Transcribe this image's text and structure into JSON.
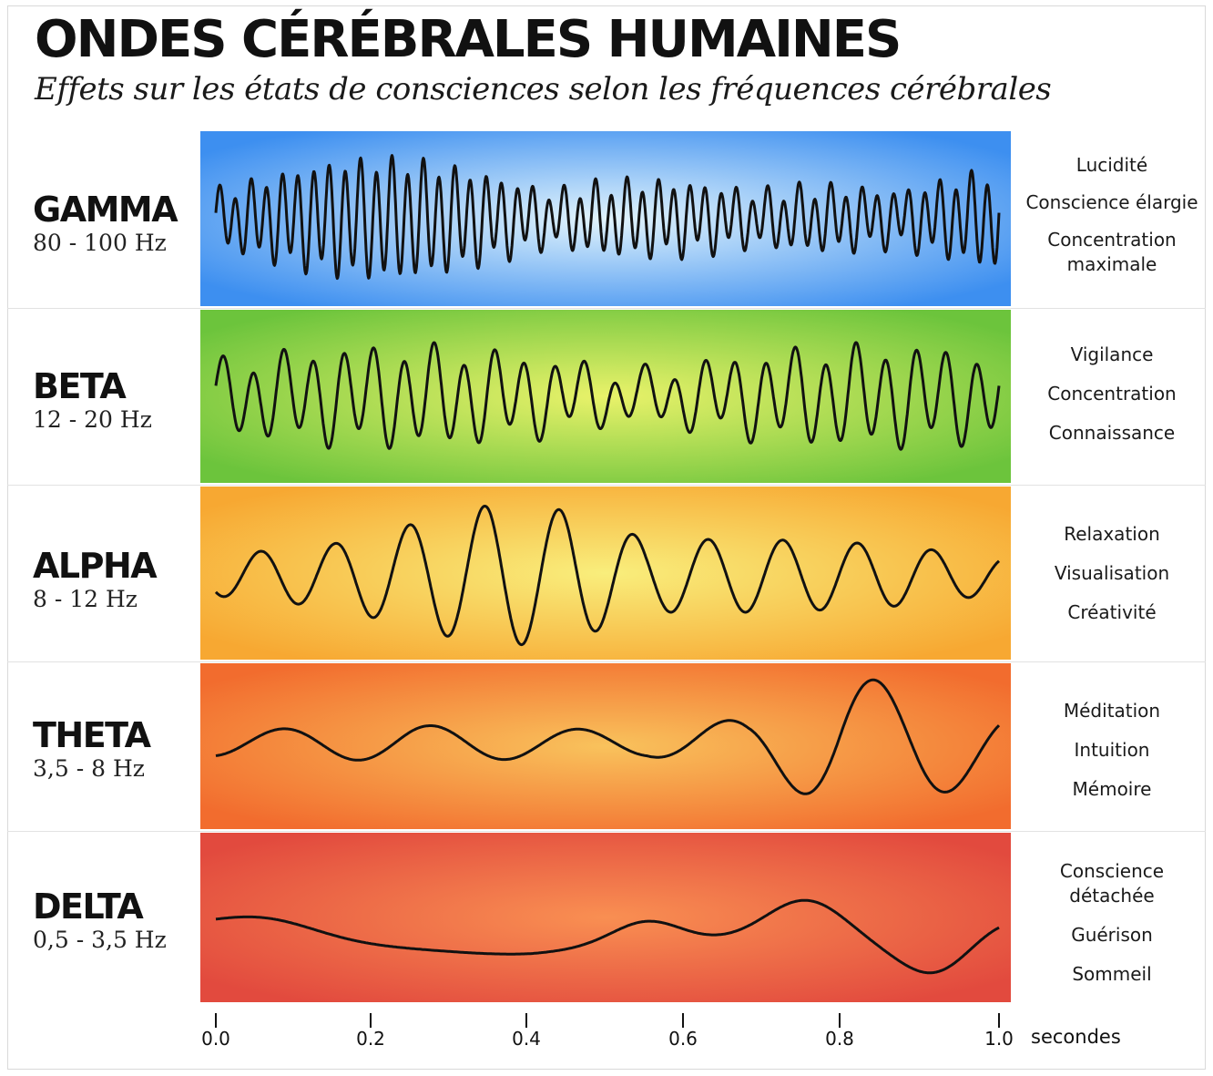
{
  "title": "ONDES CÉRÉBRALES HUMAINES",
  "subtitle": "Effets sur les états de consciences selon les fréquences cérébrales",
  "bands": [
    {
      "name": "GAMMA",
      "range": "80 - 100 Hz",
      "effects": [
        "Lucidité",
        "Conscience élargie",
        "Concentration maximale"
      ],
      "colors": {
        "edge": "#3d8ff0",
        "center": "#e2f4fc"
      }
    },
    {
      "name": "BETA",
      "range": "12 - 20 Hz",
      "effects": [
        "Vigilance",
        "Concentration",
        "Connaissance"
      ],
      "colors": {
        "edge": "#6cc43c",
        "center": "#e9f26a"
      }
    },
    {
      "name": "ALPHA",
      "range": "8 - 12 Hz",
      "effects": [
        "Relaxation",
        "Visualisation",
        "Créativité"
      ],
      "colors": {
        "edge": "#f7a832",
        "center": "#f9ee7c"
      }
    },
    {
      "name": "THETA",
      "range": "3,5 - 8 Hz",
      "effects": [
        "Méditation",
        "Intuition",
        "Mémoire"
      ],
      "colors": {
        "edge": "#f26c2e",
        "center": "#f9c25c"
      }
    },
    {
      "name": "DELTA",
      "range": "0,5 - 3,5 Hz",
      "effects": [
        "Conscience détachée",
        "Guérison",
        "Sommeil"
      ],
      "colors": {
        "edge": "#e24a3e",
        "center": "#f98f52"
      }
    }
  ],
  "axis": {
    "ticks": [
      "0.0",
      "0.2",
      "0.4",
      "0.6",
      "0.8",
      "1.0"
    ],
    "unit": "secondes"
  }
}
